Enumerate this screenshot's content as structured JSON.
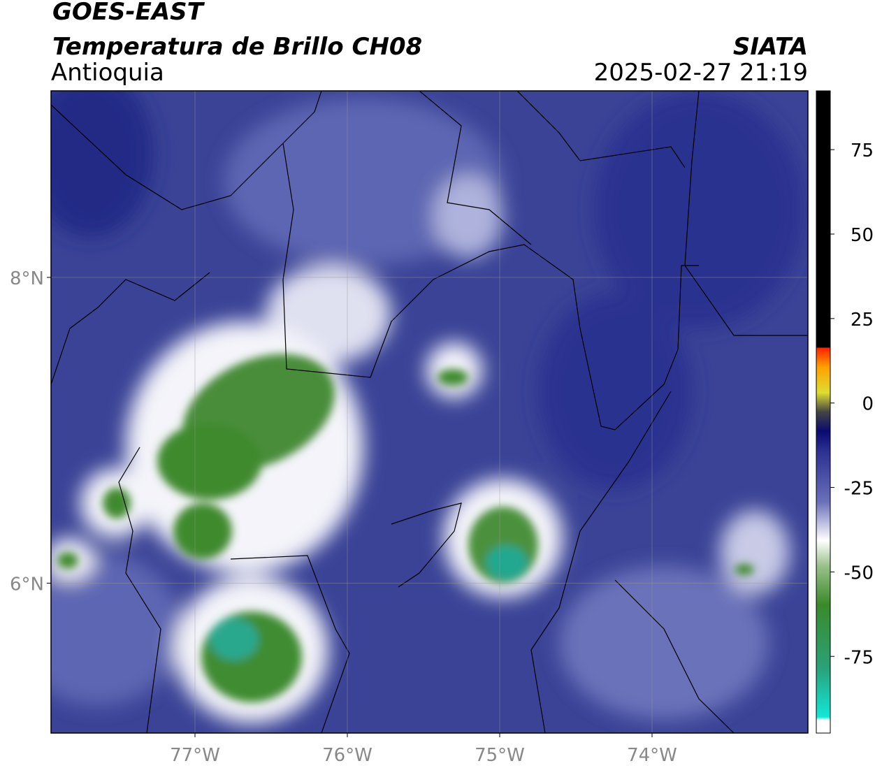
{
  "header": {
    "title": "GOES-EAST",
    "subtitle": "Temperatura de Brillo CH08",
    "region": "Antioquia",
    "source": "SIATA",
    "timestamp": "2025-02-27 21:19"
  },
  "map": {
    "xlim": [
      -77.945,
      -72.977
    ],
    "ylim": [
      5.02,
      9.22
    ],
    "xticks": [
      {
        "value": -77,
        "label": "77°W"
      },
      {
        "value": -76,
        "label": "76°W"
      },
      {
        "value": -75,
        "label": "75°W"
      },
      {
        "value": -74,
        "label": "74°W"
      }
    ],
    "yticks": [
      {
        "value": 6,
        "label": "6°N"
      },
      {
        "value": 8,
        "label": "8°N"
      }
    ],
    "grid": true
  },
  "colorbar": {
    "lim": [
      -97.7,
      92.4
    ],
    "ticks": [
      75,
      50,
      25,
      0,
      -25,
      -50,
      -75
    ]
  }
}
